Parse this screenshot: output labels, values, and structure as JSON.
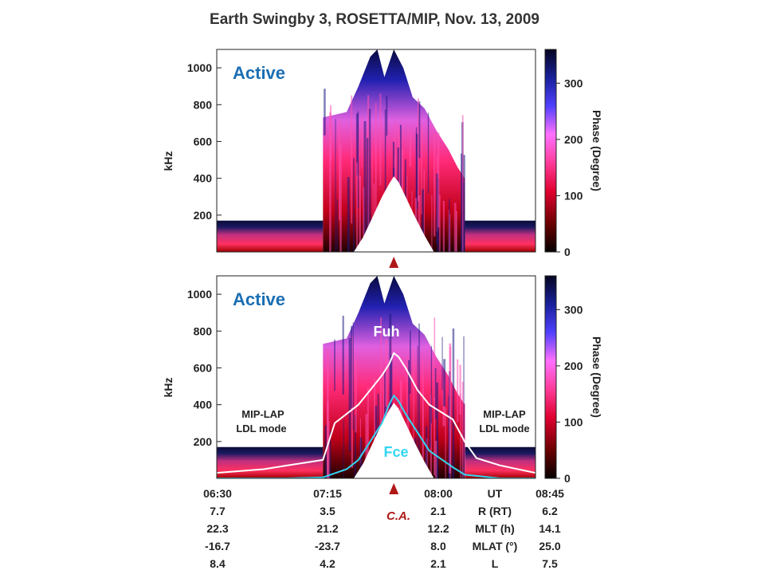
{
  "chart_data": {
    "type": "heatmap",
    "title": "Earth Swingby 3, ROSETTA/MIP, Nov. 13, 2009",
    "panels": [
      {
        "label": "Active",
        "ylabel": "kHz",
        "yticks": [
          200,
          400,
          600,
          800,
          1000
        ],
        "ylim": [
          0,
          1100
        ],
        "colorbar": {
          "label": "Phase (Degree)",
          "ticks": [
            0,
            100,
            200,
            300
          ],
          "range": [
            0,
            360
          ]
        },
        "annotations": []
      },
      {
        "label": "Active",
        "ylabel": "kHz",
        "yticks": [
          200,
          400,
          600,
          800,
          1000
        ],
        "ylim": [
          0,
          1100
        ],
        "colorbar": {
          "label": "Phase (Degree)",
          "ticks": [
            0,
            100,
            200,
            300
          ],
          "range": [
            0,
            360
          ]
        },
        "annotations": [
          {
            "id": "fuh",
            "text": "Fuh"
          },
          {
            "id": "fce",
            "text": "Fce"
          },
          {
            "id": "mode-left-1",
            "text": "MIP-LAP"
          },
          {
            "id": "mode-left-2",
            "text": "LDL mode"
          },
          {
            "id": "mode-right-1",
            "text": "MIP-LAP"
          },
          {
            "id": "mode-right-2",
            "text": "LDL mode"
          }
        ],
        "lines": [
          {
            "name": "Fuh",
            "x": [
              "06:30",
              "06:50",
              "07:00",
              "07:15",
              "07:20",
              "07:30",
              "07:35",
              "07:40",
              "07:43",
              "07:45",
              "07:47",
              "07:50",
              "07:55",
              "08:00",
              "08:10",
              "08:15",
              "08:20",
              "08:30",
              "08:45"
            ],
            "y": [
              30,
              50,
              70,
              100,
              300,
              400,
              480,
              560,
              620,
              680,
              660,
              600,
              480,
              400,
              320,
              200,
              110,
              70,
              30
            ]
          },
          {
            "name": "Fce",
            "x": [
              "06:30",
              "07:00",
              "07:15",
              "07:25",
              "07:30",
              "07:35",
              "07:40",
              "07:43",
              "07:45",
              "07:47",
              "07:50",
              "07:55",
              "08:00",
              "08:10",
              "08:15",
              "08:30",
              "08:45"
            ],
            "y": [
              0,
              0,
              5,
              50,
              100,
              200,
              300,
              400,
              450,
              420,
              350,
              250,
              150,
              60,
              20,
              0,
              0
            ]
          }
        ]
      }
    ],
    "time_axis": {
      "ticks": [
        "06:30",
        "07:15",
        "08:00",
        "UT",
        "08:45"
      ],
      "rows": [
        {
          "label": "R (RT)",
          "values": [
            "7.7",
            "3.5",
            "2.1",
            "6.2"
          ]
        },
        {
          "label": "MLT (h)",
          "values": [
            "22.3",
            "21.2",
            "12.2",
            "14.1"
          ]
        },
        {
          "label": "MLAT (°)",
          "values": [
            "-16.7",
            "-23.7",
            "8.0",
            "25.0"
          ]
        },
        {
          "label": "L",
          "values": [
            "8.4",
            "4.2",
            "2.1",
            "7.5"
          ]
        }
      ],
      "marker": "C.A.",
      "marker_time": "07:45"
    }
  }
}
